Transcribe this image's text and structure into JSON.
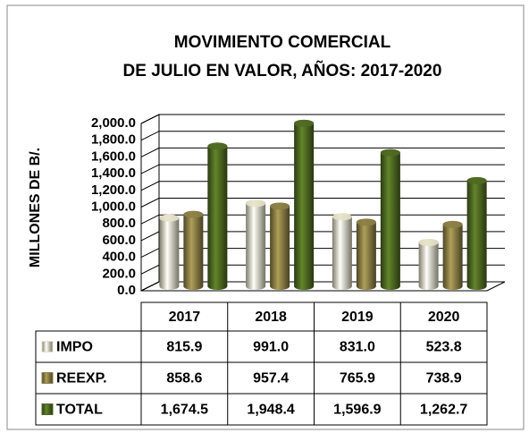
{
  "chart_data": {
    "type": "bar",
    "title": [
      "MOVIMIENTO COMERCIAL",
      "DE JULIO EN VALOR,  AÑOS: 2017-2020"
    ],
    "y_label": "MILLONES DE B/.",
    "categories": [
      "2017",
      "2018",
      "2019",
      "2020"
    ],
    "series": [
      {
        "name": "IMPO",
        "color": "#e6e2c6",
        "values": [
          815.9,
          991.0,
          831.0,
          523.8
        ],
        "value_labels": [
          "815.9",
          "991.0",
          "831.0",
          "523.8"
        ]
      },
      {
        "name": "REEXP.",
        "color": "#8c7f46",
        "values": [
          858.6,
          957.4,
          765.9,
          738.9
        ],
        "value_labels": [
          "858.6",
          "957.4",
          "765.9",
          "738.9"
        ]
      },
      {
        "name": "TOTAL",
        "color": "#4f6a22",
        "values": [
          1674.5,
          1948.4,
          1596.9,
          1262.7
        ],
        "value_labels": [
          "1,674.5",
          "1,948.4",
          "1,596.9",
          "1,262.7"
        ]
      }
    ],
    "ylim": [
      0,
      2000
    ],
    "yticks": [
      {
        "value": 0,
        "label": "0.0"
      },
      {
        "value": 200,
        "label": "200.0"
      },
      {
        "value": 400,
        "label": "400.0"
      },
      {
        "value": 600,
        "label": "600.0"
      },
      {
        "value": 800,
        "label": "800.0"
      },
      {
        "value": 1000,
        "label": "1,000.0"
      },
      {
        "value": 1200,
        "label": "1,200.0"
      },
      {
        "value": 1400,
        "label": "1,400.0"
      },
      {
        "value": 1600,
        "label": "1,600.0"
      },
      {
        "value": 1800,
        "label": "1,800.0"
      },
      {
        "value": 2000,
        "label": "2,000.0"
      }
    ],
    "grid": true
  }
}
